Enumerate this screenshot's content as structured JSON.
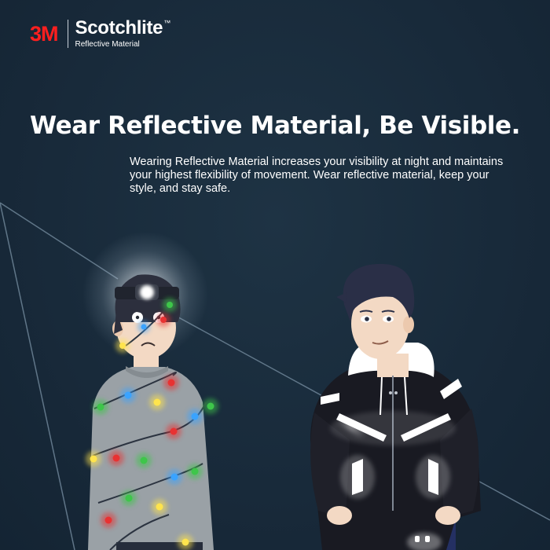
{
  "brand": {
    "logo": "3M",
    "name": "Scotchlite",
    "trademark": "™",
    "subtitle": "Reflective Material"
  },
  "headline": "Wear Reflective Material, Be Visible.",
  "body": "Wearing Reflective Material increases your visibility at night and maintains your highest flexibility of movement. Wear reflective material, keep your style, and stay safe.",
  "colors": {
    "background": "#182a3a",
    "brand_red": "#ff1f1f",
    "text": "#ffffff",
    "light_beam": "#6d8496"
  },
  "illustration": {
    "left_character": "person-wrapped-in-string-lights-with-headlamp",
    "right_character": "person-in-reflective-jacket"
  }
}
